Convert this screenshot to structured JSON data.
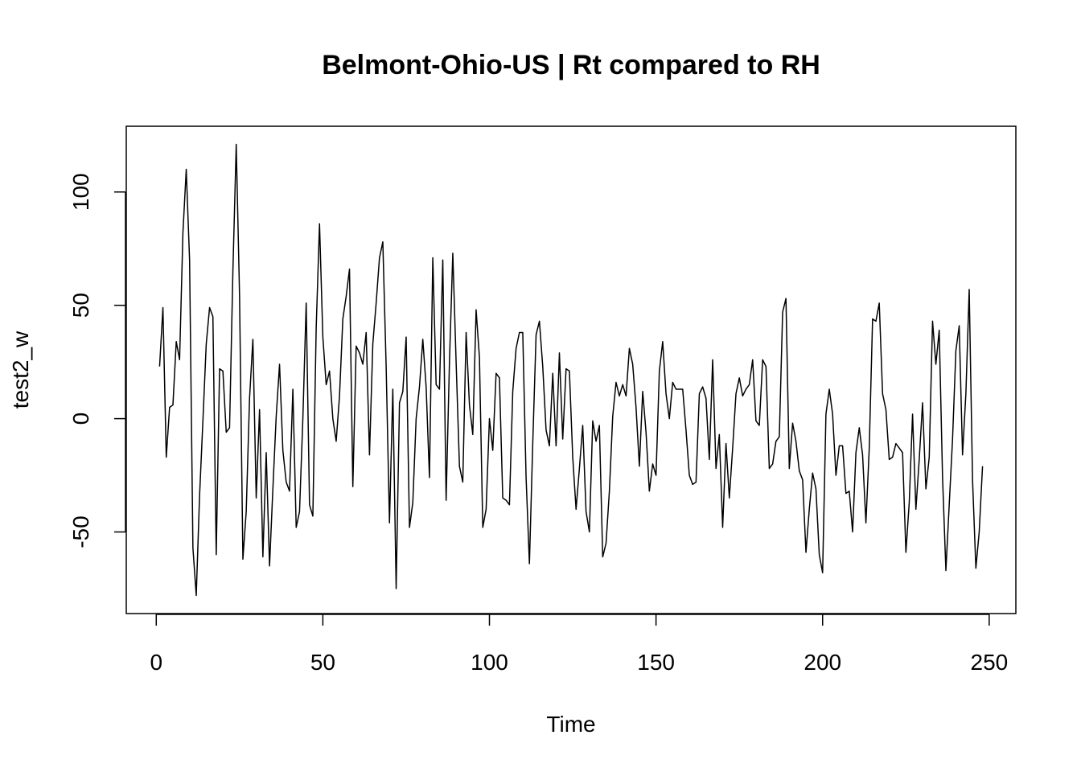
{
  "chart_data": {
    "type": "line",
    "title": "Belmont-Ohio-US | Rt compared to RH",
    "xlabel": "Time",
    "ylabel": "test2_w",
    "xlim": [
      -9,
      258
    ],
    "ylim": [
      -86,
      129
    ],
    "xticks": [
      0,
      50,
      100,
      150,
      200,
      250
    ],
    "yticks": [
      -50,
      0,
      50,
      100
    ],
    "grid": false,
    "legend": "none",
    "line_color": "#000000",
    "series": [
      {
        "x_start": 1,
        "values": [
          23,
          49,
          -17,
          5,
          6,
          34,
          26,
          82,
          110,
          70,
          -57,
          -78,
          -34,
          -1,
          33,
          49,
          45,
          -60,
          22,
          21,
          -6,
          -4,
          65,
          121,
          54,
          -62,
          -41,
          9,
          35,
          -35,
          4,
          -61,
          -15,
          -65,
          -31,
          1,
          24,
          -14,
          -28,
          -32,
          13,
          -48,
          -41,
          0,
          51,
          -38,
          -43,
          40,
          86,
          36,
          15,
          21,
          0,
          -10,
          10,
          44,
          54,
          66,
          -30,
          32,
          29,
          24,
          38,
          -16,
          33,
          51,
          71,
          78,
          23,
          -46,
          13,
          -75,
          7,
          12,
          36,
          -48,
          -37,
          0,
          14,
          35,
          14,
          -26,
          71,
          15,
          13,
          70,
          -36,
          25,
          73,
          25,
          -21,
          -28,
          38,
          6,
          -7,
          48,
          27,
          -48,
          -40,
          0,
          -14,
          20,
          18,
          -35,
          -36,
          -38,
          12,
          31,
          38,
          38,
          -26,
          -64,
          -11,
          37,
          43,
          23,
          -5,
          -12,
          20,
          -12,
          29,
          -9,
          22,
          21,
          -17,
          -40,
          -22,
          -3,
          -41,
          -50,
          -1,
          -10,
          -3,
          -61,
          -55,
          -32,
          1,
          16,
          10,
          15,
          10,
          31,
          24,
          5,
          -21,
          12,
          -6,
          -32,
          -20,
          -25,
          21,
          34,
          11,
          0,
          16,
          13,
          13,
          13,
          -5,
          -25,
          -29,
          -28,
          11,
          14,
          9,
          -18,
          26,
          -22,
          -7,
          -48,
          -11,
          -35,
          -13,
          11,
          18,
          10,
          13,
          15,
          26,
          -1,
          -3,
          26,
          23,
          -22,
          -20,
          -10,
          -8,
          47,
          53,
          -22,
          -2,
          -10,
          -23,
          -27,
          -59,
          -40,
          -24,
          -31,
          -60,
          -68,
          2,
          13,
          2,
          -25,
          -12,
          -12,
          -33,
          -32,
          -50,
          -15,
          -4,
          -16,
          -46,
          -13,
          44,
          43,
          51,
          11,
          4,
          -18,
          -17,
          -11,
          -13,
          -15,
          -59,
          -37,
          2,
          -40,
          -18,
          7,
          -31,
          -17,
          43,
          24,
          39,
          -26,
          -67,
          -38,
          -9,
          30,
          41,
          -16,
          11,
          57,
          -27,
          -66,
          -50,
          -21
        ]
      }
    ]
  }
}
